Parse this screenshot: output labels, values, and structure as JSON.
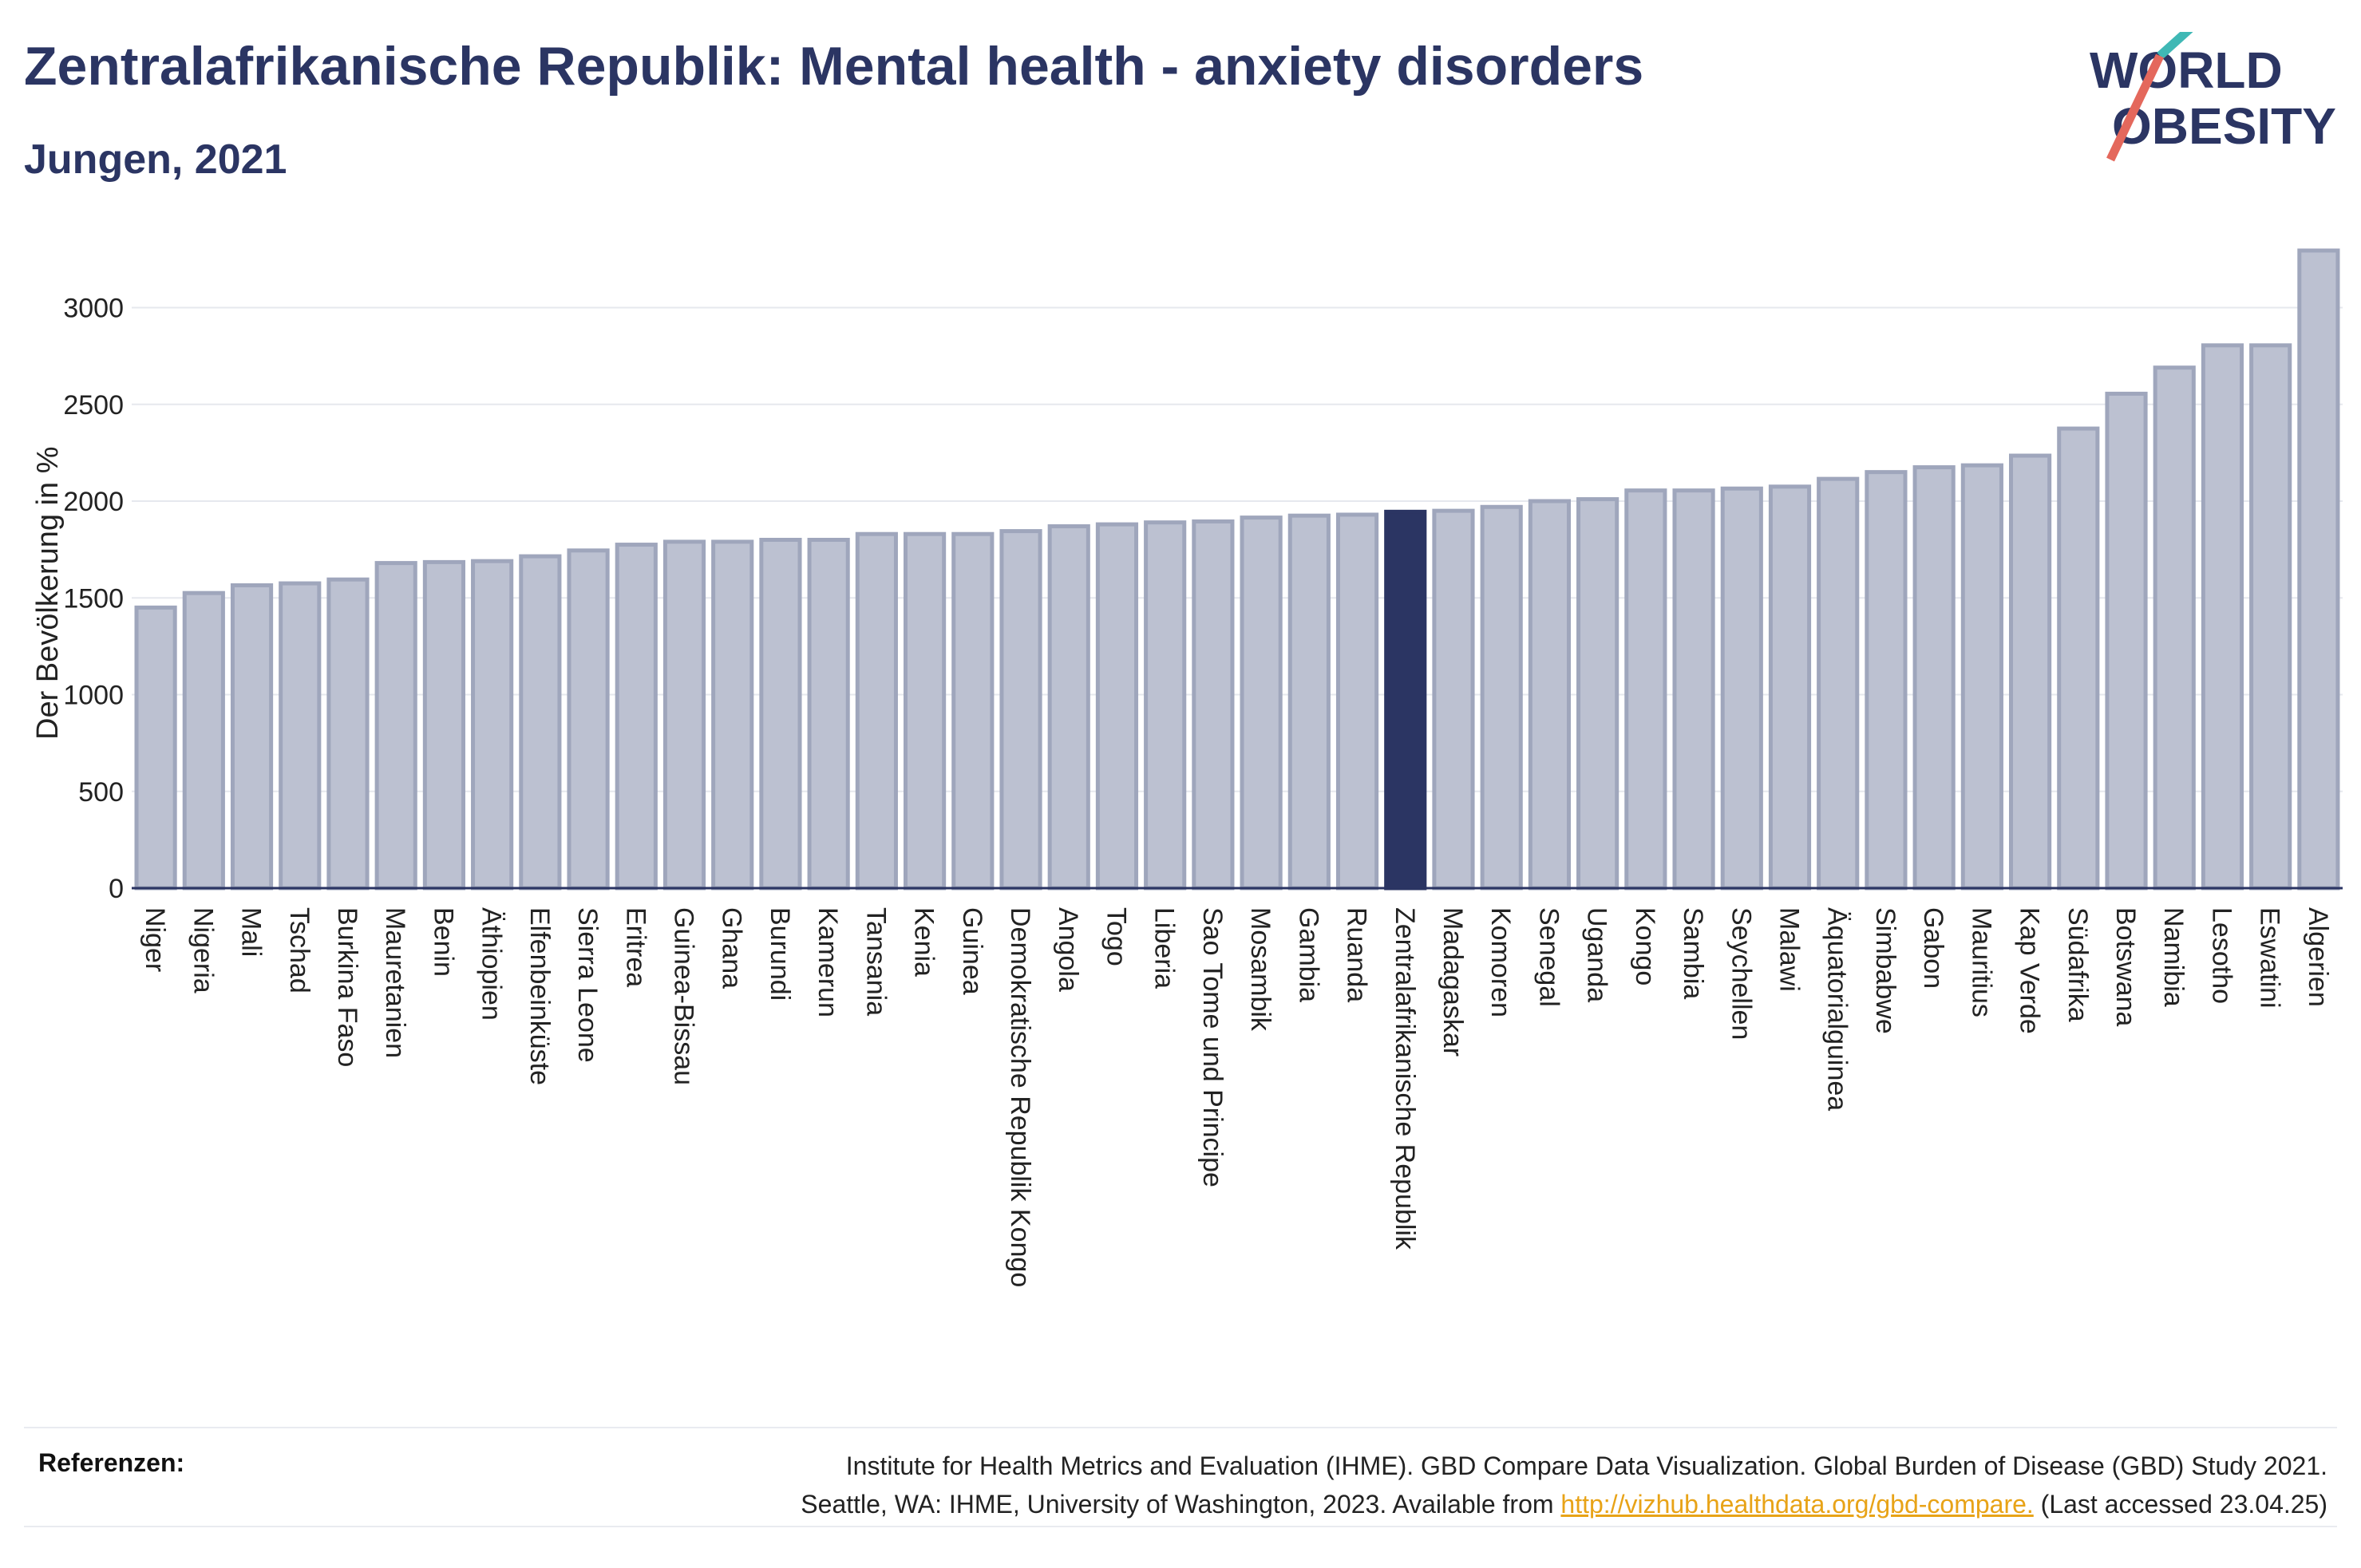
{
  "header": {
    "title": "Zentralafrikanische Republik: Mental health - anxiety disorders",
    "subtitle": "Jungen, 2021"
  },
  "logo": {
    "line1": "WORLD",
    "line2": "OBESITY",
    "accent_colors": [
      "#3fb8b5",
      "#e4685c"
    ]
  },
  "colors": {
    "bar": "#bcc1d1",
    "bar_stroke": "#9fa6bc",
    "highlight": "#2b3563",
    "text": "#2b3563",
    "link": "#e8a317"
  },
  "chart_data": {
    "type": "bar",
    "title": "",
    "xlabel": "",
    "ylabel": "Der Bevölkerung in %",
    "ylim": [
      0,
      3300
    ],
    "yticks": [
      0,
      500,
      1000,
      1500,
      2000,
      2500,
      3000
    ],
    "grid": true,
    "highlight": "Zentralafrikanische Republik",
    "categories": [
      "Niger",
      "Nigeria",
      "Mali",
      "Tschad",
      "Burkina Faso",
      "Mauretanien",
      "Benin",
      "Äthiopien",
      "Elfenbeinküste",
      "Sierra Leone",
      "Eritrea",
      "Guinea-Bissau",
      "Ghana",
      "Burundi",
      "Kamerun",
      "Tansania",
      "Kenia",
      "Guinea",
      "Demokratische Republik Kongo",
      "Angola",
      "Togo",
      "Liberia",
      "Sao Tome und Principe",
      "Mosambik",
      "Gambia",
      "Ruanda",
      "Zentralafrikanische Republik",
      "Madagaskar",
      "Komoren",
      "Senegal",
      "Uganda",
      "Kongo",
      "Sambia",
      "Seychellen",
      "Malawi",
      "Äquatorialguinea",
      "Simbabwe",
      "Gabon",
      "Mauritius",
      "Kap Verde",
      "Südafrika",
      "Botswana",
      "Namibia",
      "Lesotho",
      "Eswatini",
      "Algerien"
    ],
    "values": [
      1450,
      1525,
      1565,
      1575,
      1595,
      1680,
      1685,
      1690,
      1715,
      1745,
      1775,
      1790,
      1790,
      1800,
      1800,
      1830,
      1830,
      1830,
      1845,
      1870,
      1880,
      1890,
      1895,
      1915,
      1925,
      1930,
      1945,
      1950,
      1970,
      2000,
      2010,
      2055,
      2055,
      2065,
      2075,
      2115,
      2150,
      2175,
      2185,
      2235,
      2375,
      2555,
      2690,
      2805,
      2805,
      3295
    ]
  },
  "references": {
    "label": "Referenzen:",
    "line1": "Institute for Health Metrics and Evaluation (IHME). GBD Compare Data Visualization. Global Burden of Disease (GBD) Study 2021.",
    "line2_before": "Seattle, WA: IHME, University of Washington, 2023. Available from ",
    "link": "http://vizhub.healthdata.org/gbd-compare.",
    "line2_after": " (Last accessed 23.04.25)"
  }
}
